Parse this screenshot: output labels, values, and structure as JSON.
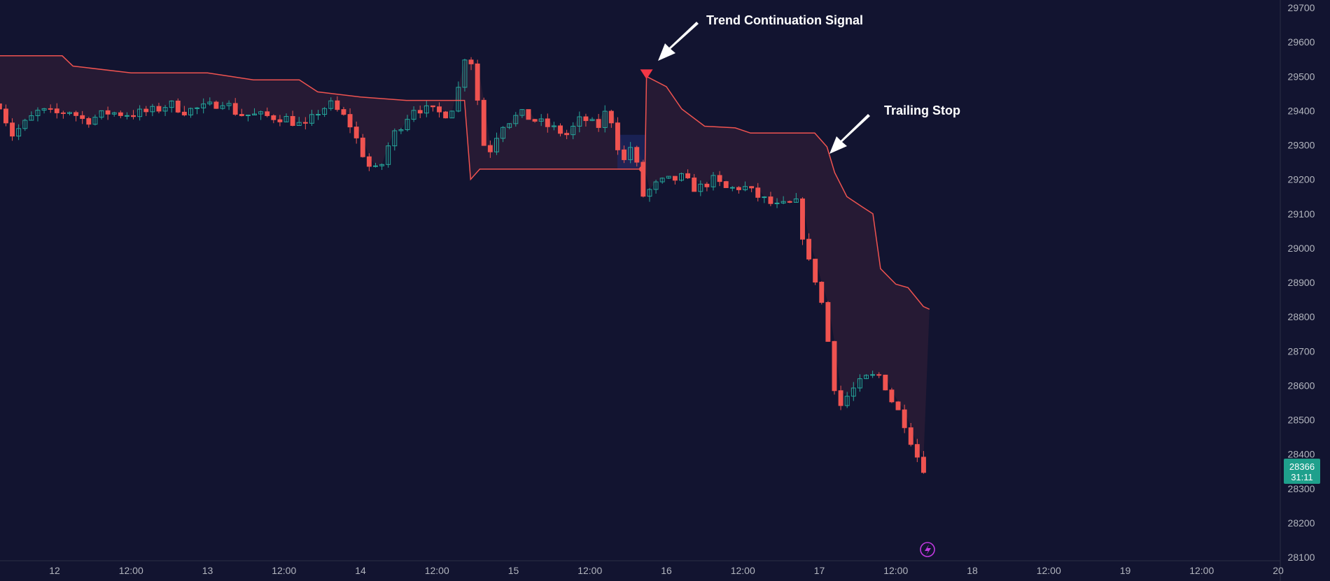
{
  "chart_data": {
    "type": "candlestick",
    "colors": {
      "background": "#121430",
      "bull": "#26a69a",
      "bear": "#ef5350",
      "stop_line": "#ef5350",
      "stop_fill": "#2a1b35",
      "text": "#b2b5be",
      "annotation": "#ffffff",
      "signal": "#f23645",
      "price_badge": "#1fa08c",
      "flash_icon": "#c039e0"
    },
    "y_axis": {
      "ticks": [
        29700,
        29600,
        29500,
        29400,
        29300,
        29200,
        29100,
        29000,
        28900,
        28800,
        28700,
        28600,
        28500,
        28400,
        28300,
        28200,
        28100
      ],
      "range": [
        28100,
        29700
      ]
    },
    "x_axis": {
      "tick_labels": [
        "12",
        "12:00",
        "13",
        "12:00",
        "14",
        "12:00",
        "15",
        "12:00",
        "16",
        "12:00",
        "17",
        "12:00",
        "18",
        "12:00",
        "19",
        "12:00",
        "20"
      ],
      "tick_days": [
        12,
        12.5,
        13,
        13.5,
        14,
        14.5,
        15,
        15.5,
        16,
        16.5,
        17,
        17.5,
        18,
        18.5,
        19,
        19.5,
        20
      ],
      "range_days": [
        11.64,
        20.0
      ]
    },
    "candle_interval_hours": 1,
    "anchors": [
      [
        11.64,
        29420
      ],
      [
        11.72,
        29330
      ],
      [
        11.8,
        29360
      ],
      [
        11.9,
        29400
      ],
      [
        12.0,
        29390
      ],
      [
        12.1,
        29400
      ],
      [
        12.2,
        29370
      ],
      [
        12.35,
        29395
      ],
      [
        12.5,
        29390
      ],
      [
        12.65,
        29400
      ],
      [
        12.75,
        29420
      ],
      [
        12.85,
        29400
      ],
      [
        13.0,
        29410
      ],
      [
        13.1,
        29430
      ],
      [
        13.2,
        29390
      ],
      [
        13.35,
        29385
      ],
      [
        13.5,
        29380
      ],
      [
        13.65,
        29350
      ],
      [
        13.7,
        29390
      ],
      [
        13.8,
        29420
      ],
      [
        13.92,
        29370
      ],
      [
        14.05,
        29240
      ],
      [
        14.12,
        29220
      ],
      [
        14.2,
        29320
      ],
      [
        14.35,
        29410
      ],
      [
        14.45,
        29400
      ],
      [
        14.55,
        29390
      ],
      [
        14.62,
        29420
      ],
      [
        14.7,
        29600
      ],
      [
        14.75,
        29480
      ],
      [
        14.82,
        29260
      ],
      [
        14.92,
        29360
      ],
      [
        15.05,
        29390
      ],
      [
        15.2,
        29360
      ],
      [
        15.35,
        29330
      ],
      [
        15.45,
        29380
      ],
      [
        15.55,
        29350
      ],
      [
        15.62,
        29410
      ],
      [
        15.68,
        29300
      ],
      [
        15.72,
        29250
      ],
      [
        15.78,
        29310
      ],
      [
        15.84,
        29150
      ],
      [
        15.95,
        29190
      ],
      [
        16.1,
        29205
      ],
      [
        16.2,
        29170
      ],
      [
        16.3,
        29200
      ],
      [
        16.4,
        29170
      ],
      [
        16.5,
        29180
      ],
      [
        16.6,
        29150
      ],
      [
        16.72,
        29120
      ],
      [
        16.85,
        29130
      ],
      [
        16.92,
        28970
      ],
      [
        17.0,
        28880
      ],
      [
        17.06,
        28720
      ],
      [
        17.12,
        28530
      ],
      [
        17.2,
        28580
      ],
      [
        17.3,
        28620
      ],
      [
        17.4,
        28630
      ],
      [
        17.48,
        28550
      ],
      [
        17.55,
        28500
      ],
      [
        17.6,
        28440
      ],
      [
        17.67,
        28360
      ],
      [
        17.72,
        28366
      ]
    ],
    "trailing_stop": [
      [
        11.64,
        29560
      ],
      [
        12.05,
        29560
      ],
      [
        12.12,
        29530
      ],
      [
        12.5,
        29510
      ],
      [
        13.0,
        29510
      ],
      [
        13.3,
        29490
      ],
      [
        13.6,
        29490
      ],
      [
        13.72,
        29455
      ],
      [
        14.0,
        29440
      ],
      [
        14.3,
        29430
      ],
      [
        14.68,
        29430
      ],
      [
        14.72,
        29200
      ],
      [
        14.78,
        29230
      ],
      [
        15.3,
        29230
      ],
      [
        15.86,
        29230
      ],
      [
        15.87,
        29500
      ],
      [
        16.0,
        29470
      ],
      [
        16.1,
        29405
      ],
      [
        16.25,
        29355
      ],
      [
        16.45,
        29350
      ],
      [
        16.55,
        29335
      ],
      [
        16.97,
        29335
      ],
      [
        17.05,
        29295
      ],
      [
        17.1,
        29220
      ],
      [
        17.18,
        29150
      ],
      [
        17.28,
        29120
      ],
      [
        17.35,
        29100
      ],
      [
        17.4,
        28940
      ],
      [
        17.5,
        28895
      ],
      [
        17.58,
        28885
      ],
      [
        17.68,
        28830
      ],
      [
        17.72,
        28822
      ]
    ],
    "last_price": "28366",
    "countdown": "31:11",
    "annotations": [
      {
        "text": "Trend Continuation Signal"
      },
      {
        "text": "Trailing Stop"
      }
    ]
  }
}
